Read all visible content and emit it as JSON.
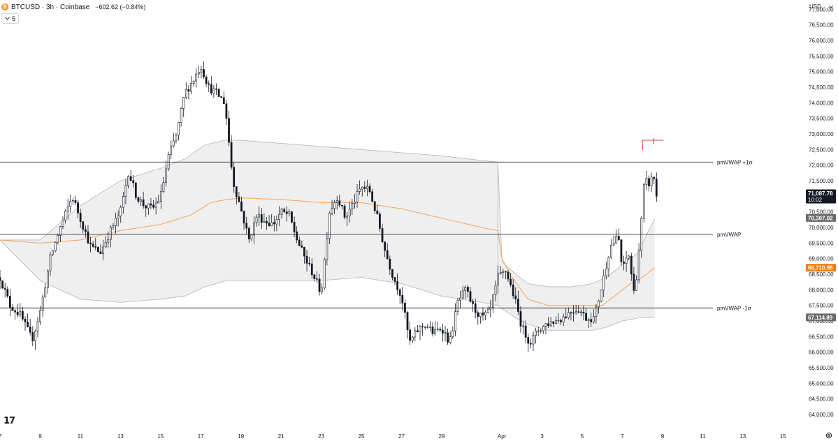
{
  "header": {
    "symbol_line": "BTCUSD · 3h · Coinbase",
    "change": "−602.62 (−0.84%)",
    "indicator_toggle": "5",
    "coin_glyph": "₿"
  },
  "axis": {
    "currency": "USD"
  },
  "colors": {
    "up": "#131722",
    "down": "#131722",
    "band_fill": "#ececec",
    "band_line": "#b2b5be",
    "vwap_line": "#f7a35c",
    "hline": "#131722",
    "marker": "#e53935"
  },
  "chart_data": {
    "type": "candlestick",
    "title": "BTCUSD · 3h · Coinbase",
    "ylim": [
      63800,
      77300
    ],
    "y_ticks": [
      64000,
      64500,
      65000,
      65500,
      66000,
      66500,
      67000,
      67500,
      68000,
      68500,
      69000,
      69500,
      70000,
      70500,
      71000,
      71500,
      72000,
      72500,
      73000,
      73500,
      74000,
      74500,
      75000,
      75500,
      76000,
      76500,
      77000
    ],
    "x_day_range": [
      7,
      47
    ],
    "x_ticks": [
      {
        "day": 7,
        "label": "7"
      },
      {
        "day": 9,
        "label": "9"
      },
      {
        "day": 11,
        "label": "11"
      },
      {
        "day": 13,
        "label": "13"
      },
      {
        "day": 15,
        "label": "15"
      },
      {
        "day": 17,
        "label": "17"
      },
      {
        "day": 19,
        "label": "19"
      },
      {
        "day": 21,
        "label": "21"
      },
      {
        "day": 23,
        "label": "23"
      },
      {
        "day": 25,
        "label": "25"
      },
      {
        "day": 27,
        "label": "27"
      },
      {
        "day": 29,
        "label": "29"
      },
      {
        "day": 32,
        "label": "Apr"
      },
      {
        "day": 34,
        "label": "3"
      },
      {
        "day": 36,
        "label": "5"
      },
      {
        "day": 38,
        "label": "7"
      },
      {
        "day": 40,
        "label": "9"
      },
      {
        "day": 42,
        "label": "11"
      },
      {
        "day": 44,
        "label": "13"
      },
      {
        "day": 46,
        "label": "15"
      }
    ],
    "price_path": [
      [
        7.0,
        68400
      ],
      [
        7.5,
        67500
      ],
      [
        8.0,
        67200
      ],
      [
        8.6,
        66400
      ],
      [
        9.0,
        67300
      ],
      [
        9.5,
        69000
      ],
      [
        10.0,
        70000
      ],
      [
        10.6,
        71000
      ],
      [
        11.0,
        70300
      ],
      [
        11.5,
        69400
      ],
      [
        12.0,
        69200
      ],
      [
        12.5,
        69900
      ],
      [
        13.0,
        70500
      ],
      [
        13.4,
        71800
      ],
      [
        13.8,
        71000
      ],
      [
        14.2,
        70700
      ],
      [
        14.6,
        70600
      ],
      [
        15.0,
        71000
      ],
      [
        15.4,
        72300
      ],
      [
        15.8,
        73000
      ],
      [
        16.2,
        74300
      ],
      [
        16.6,
        74700
      ],
      [
        17.0,
        75200
      ],
      [
        17.4,
        74500
      ],
      [
        17.8,
        74300
      ],
      [
        18.2,
        74000
      ],
      [
        18.6,
        71500
      ],
      [
        19.0,
        70600
      ],
      [
        19.4,
        69600
      ],
      [
        19.8,
        70400
      ],
      [
        20.2,
        70200
      ],
      [
        20.6,
        70100
      ],
      [
        21.0,
        70500
      ],
      [
        21.4,
        70400
      ],
      [
        21.8,
        69600
      ],
      [
        22.2,
        69000
      ],
      [
        22.6,
        68500
      ],
      [
        23.0,
        67900
      ],
      [
        23.4,
        70500
      ],
      [
        23.8,
        71000
      ],
      [
        24.2,
        70300
      ],
      [
        24.6,
        70800
      ],
      [
        25.0,
        71300
      ],
      [
        25.4,
        71200
      ],
      [
        25.8,
        70300
      ],
      [
        26.2,
        69200
      ],
      [
        26.6,
        68400
      ],
      [
        27.0,
        67800
      ],
      [
        27.4,
        66300
      ],
      [
        27.8,
        66700
      ],
      [
        28.2,
        66900
      ],
      [
        28.6,
        66600
      ],
      [
        29.0,
        66800
      ],
      [
        29.4,
        66300
      ],
      [
        29.8,
        67600
      ],
      [
        30.2,
        68000
      ],
      [
        30.6,
        67400
      ],
      [
        31.0,
        67100
      ],
      [
        31.4,
        67300
      ],
      [
        31.8,
        68400
      ],
      [
        32.2,
        68600
      ],
      [
        32.6,
        67800
      ],
      [
        33.0,
        66800
      ],
      [
        33.4,
        66300
      ],
      [
        33.8,
        66700
      ],
      [
        34.2,
        66900
      ],
      [
        34.6,
        67000
      ],
      [
        35.0,
        67100
      ],
      [
        35.4,
        67300
      ],
      [
        35.8,
        67400
      ],
      [
        36.2,
        67100
      ],
      [
        36.6,
        67100
      ],
      [
        37.0,
        68200
      ],
      [
        37.4,
        69400
      ],
      [
        37.8,
        69700
      ],
      [
        38.0,
        68600
      ],
      [
        38.3,
        69200
      ],
      [
        38.6,
        67800
      ],
      [
        38.9,
        69800
      ],
      [
        39.1,
        71500
      ],
      [
        39.35,
        71400
      ],
      [
        39.55,
        71700
      ],
      [
        39.7,
        71000
      ]
    ],
    "candle_count": 262,
    "series": [
      {
        "name": "pmVWAP",
        "points": [
          [
            7,
            69600
          ],
          [
            9,
            69500
          ],
          [
            11,
            69600
          ],
          [
            13,
            69900
          ],
          [
            15,
            70100
          ],
          [
            16.5,
            70400
          ],
          [
            17.5,
            70800
          ],
          [
            18.3,
            70900
          ],
          [
            19,
            70950
          ],
          [
            21,
            70900
          ],
          [
            23,
            70800
          ],
          [
            25,
            70800
          ],
          [
            27,
            70600
          ],
          [
            29,
            70300
          ],
          [
            31,
            70000
          ],
          [
            31.8,
            69900
          ],
          [
            32,
            69000
          ],
          [
            32.5,
            68400
          ],
          [
            33.3,
            67700
          ],
          [
            34.3,
            67500
          ],
          [
            35.5,
            67500
          ],
          [
            36.5,
            67500
          ],
          [
            37,
            67500
          ],
          [
            37.6,
            67800
          ],
          [
            38.4,
            68200
          ],
          [
            39,
            68400
          ],
          [
            39.6,
            68710
          ]
        ]
      },
      {
        "name": "pmVWAP +1σ",
        "points": [
          [
            7,
            69600
          ],
          [
            9,
            69600
          ],
          [
            11,
            70700
          ],
          [
            13,
            71500
          ],
          [
            15,
            71900
          ],
          [
            16.2,
            72200
          ],
          [
            17.2,
            72650
          ],
          [
            18.2,
            72800
          ],
          [
            19,
            72800
          ],
          [
            21,
            72700
          ],
          [
            23,
            72600
          ],
          [
            25,
            72500
          ],
          [
            27,
            72400
          ],
          [
            29,
            72300
          ],
          [
            31,
            72150
          ],
          [
            31.8,
            72100
          ],
          [
            32,
            68900
          ],
          [
            32.7,
            68500
          ],
          [
            33.3,
            68200
          ],
          [
            34.3,
            68100
          ],
          [
            35.5,
            68100
          ],
          [
            36.5,
            68200
          ],
          [
            37.2,
            68400
          ],
          [
            38,
            68800
          ],
          [
            38.8,
            69200
          ],
          [
            39.3,
            69900
          ],
          [
            39.65,
            70307
          ]
        ]
      },
      {
        "name": "pmVWAP -1σ",
        "points": [
          [
            7,
            69600
          ],
          [
            9,
            68300
          ],
          [
            11,
            67700
          ],
          [
            13,
            67600
          ],
          [
            15,
            67700
          ],
          [
            16.2,
            67800
          ],
          [
            17.2,
            68100
          ],
          [
            18.3,
            68300
          ],
          [
            19,
            68300
          ],
          [
            21,
            68300
          ],
          [
            23,
            68300
          ],
          [
            25,
            68400
          ],
          [
            27,
            68200
          ],
          [
            29,
            67800
          ],
          [
            31,
            67600
          ],
          [
            31.8,
            67500
          ],
          [
            32,
            67400
          ],
          [
            32.7,
            67100
          ],
          [
            33.3,
            66900
          ],
          [
            34.3,
            66700
          ],
          [
            35.5,
            66700
          ],
          [
            36.5,
            66700
          ],
          [
            37.2,
            66800
          ],
          [
            38,
            67000
          ],
          [
            38.8,
            67100
          ],
          [
            39.3,
            67115
          ],
          [
            39.65,
            67115
          ]
        ]
      }
    ],
    "band_end_day": 31.8,
    "recent_band_end_day": 39.65,
    "hlines": [
      {
        "label": "pmVWAP +1σ",
        "price": 72100
      },
      {
        "label": "pmVWAP",
        "price": 69780
      },
      {
        "label": "pmVWAP -1σ",
        "price": 67420
      }
    ],
    "marker_line": {
      "price": 72800,
      "day_start": 39.0,
      "day_end": 40.05
    },
    "price_tags": [
      {
        "value": "71,087.78",
        "sub": "10:02",
        "price": 71087.78,
        "bg": "#131722",
        "fg": "#ffffff"
      },
      {
        "value": "70,307.02",
        "price": 70307.02,
        "bg": "#6b6b6b",
        "fg": "#ffffff"
      },
      {
        "value": "68,710.95",
        "price": 68710.95,
        "bg": "#f57c00",
        "fg": "#ffffff"
      },
      {
        "value": "67,114.89",
        "price": 67114.89,
        "bg": "#6b6b6b",
        "fg": "#ffffff"
      }
    ]
  }
}
